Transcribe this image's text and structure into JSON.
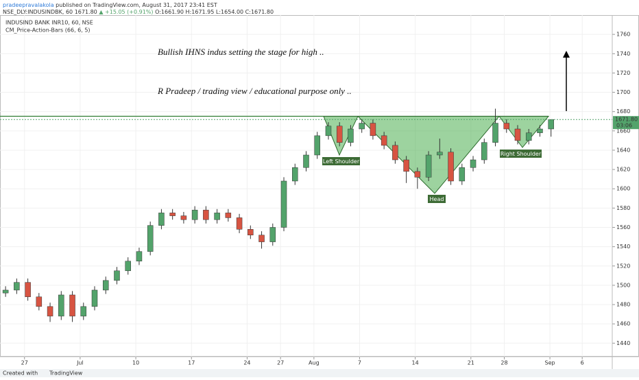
{
  "header": {
    "author": "pradeepravalakola",
    "published": "published on TradingView.com, August 31, 2017 23:41 EST",
    "symbol": "NSE_DLY:INDUSINDBK, 60",
    "last": "1671.80",
    "change": "▲ +15.05 (+0.91%)",
    "ohlc": "O:1661.90 H:1671.95 L:1654.00 C:1671.80"
  },
  "chart_data": {
    "type": "candlestick",
    "title": "INDUSIND BANK INR10, 60, NSE",
    "subtitle": "CM_Price-Action-Bars (66, 6, 5)",
    "annotations": [
      "Bullish IHNS indus setting the stage for high ..",
      "R Pradeep / trading view / educational purpose only ..",
      "Left Shoulder",
      "Head",
      "Right Shoulder"
    ],
    "last_price_label": "1671.80",
    "countdown": "03:06",
    "up_color": "#53a36b",
    "down_color": "#d75442",
    "grid": true,
    "x": [
      0.5,
      1.5,
      2.5,
      3.5,
      4.5,
      5.5,
      6.5,
      7.5,
      8.5,
      9.5,
      10.5,
      11.5,
      12.5,
      13.5,
      14.5,
      15.5,
      16.5,
      17.5,
      18.5,
      19.5,
      20.5,
      21.5,
      22.5,
      23.5,
      24.5,
      25.5,
      26.5,
      27.5,
      28.5,
      29.5,
      30.5,
      31.5,
      32.5,
      33.5,
      34.5,
      35.5,
      36.5,
      37.5,
      38.5,
      39.5,
      40.5,
      41.5,
      42.5,
      43.5,
      44.5,
      45.5,
      46.5,
      47.5,
      48.5,
      49.5
    ],
    "open": [
      1492,
      1495,
      1503,
      1488,
      1478,
      1468,
      1490,
      1468,
      1478,
      1495,
      1505,
      1515,
      1525,
      1535,
      1562,
      1575,
      1572,
      1568,
      1578,
      1568,
      1575,
      1570,
      1558,
      1552,
      1545,
      1560,
      1608,
      1622,
      1635,
      1655,
      1665,
      1648,
      1662,
      1668,
      1655,
      1645,
      1630,
      1618,
      1612,
      1635,
      1638,
      1608,
      1622,
      1630,
      1648,
      1668,
      1662,
      1650,
      1658,
      1662
    ],
    "high": [
      1499,
      1507,
      1507,
      1492,
      1482,
      1494,
      1494,
      1482,
      1499,
      1509,
      1519,
      1529,
      1539,
      1566,
      1579,
      1579,
      1576,
      1582,
      1582,
      1579,
      1579,
      1574,
      1562,
      1556,
      1564,
      1612,
      1626,
      1639,
      1659,
      1669,
      1669,
      1666,
      1672,
      1672,
      1659,
      1649,
      1634,
      1622,
      1639,
      1652,
      1642,
      1626,
      1634,
      1652,
      1683,
      1672,
      1666,
      1662,
      1666,
      1671.95
    ],
    "low": [
      1488,
      1491,
      1484,
      1474,
      1462,
      1464,
      1462,
      1464,
      1474,
      1491,
      1501,
      1511,
      1521,
      1531,
      1558,
      1568,
      1564,
      1564,
      1564,
      1564,
      1566,
      1554,
      1548,
      1538,
      1541,
      1556,
      1604,
      1618,
      1631,
      1651,
      1644,
      1644,
      1658,
      1651,
      1641,
      1626,
      1606,
      1600,
      1608,
      1631,
      1604,
      1604,
      1618,
      1626,
      1644,
      1658,
      1646,
      1646,
      1654,
      1654
    ],
    "close": [
      1495,
      1503,
      1488,
      1478,
      1468,
      1490,
      1468,
      1478,
      1495,
      1505,
      1515,
      1525,
      1535,
      1562,
      1575,
      1572,
      1568,
      1578,
      1568,
      1575,
      1570,
      1558,
      1552,
      1545,
      1560,
      1608,
      1622,
      1635,
      1655,
      1665,
      1648,
      1662,
      1668,
      1655,
      1645,
      1630,
      1618,
      1612,
      1635,
      1638,
      1608,
      1622,
      1630,
      1648,
      1668,
      1662,
      1650,
      1658,
      1662,
      1671.8
    ],
    "xlim": [
      0,
      55
    ],
    "xticks": [
      {
        "value": 2.2,
        "label": "27"
      },
      {
        "value": 7.2,
        "label": "Jul"
      },
      {
        "value": 12.2,
        "label": "10"
      },
      {
        "value": 17.2,
        "label": "17"
      },
      {
        "value": 22.2,
        "label": "24"
      },
      {
        "value": 25.2,
        "label": "27"
      },
      {
        "value": 28.2,
        "label": "Aug"
      },
      {
        "value": 32.3,
        "label": "7"
      },
      {
        "value": 37.3,
        "label": "14"
      },
      {
        "value": 42.3,
        "label": "21"
      },
      {
        "value": 45.3,
        "label": "28"
      },
      {
        "value": 49.4,
        "label": "Sep"
      },
      {
        "value": 52.3,
        "label": "6"
      }
    ],
    "ylim": [
      1426,
      1780
    ],
    "yticks": [
      1440,
      1460,
      1480,
      1500,
      1520,
      1540,
      1560,
      1580,
      1600,
      1620,
      1640,
      1660,
      1680,
      1700,
      1720,
      1740,
      1760
    ]
  },
  "footer": {
    "created": "Created with",
    "brand": "TradingView"
  }
}
